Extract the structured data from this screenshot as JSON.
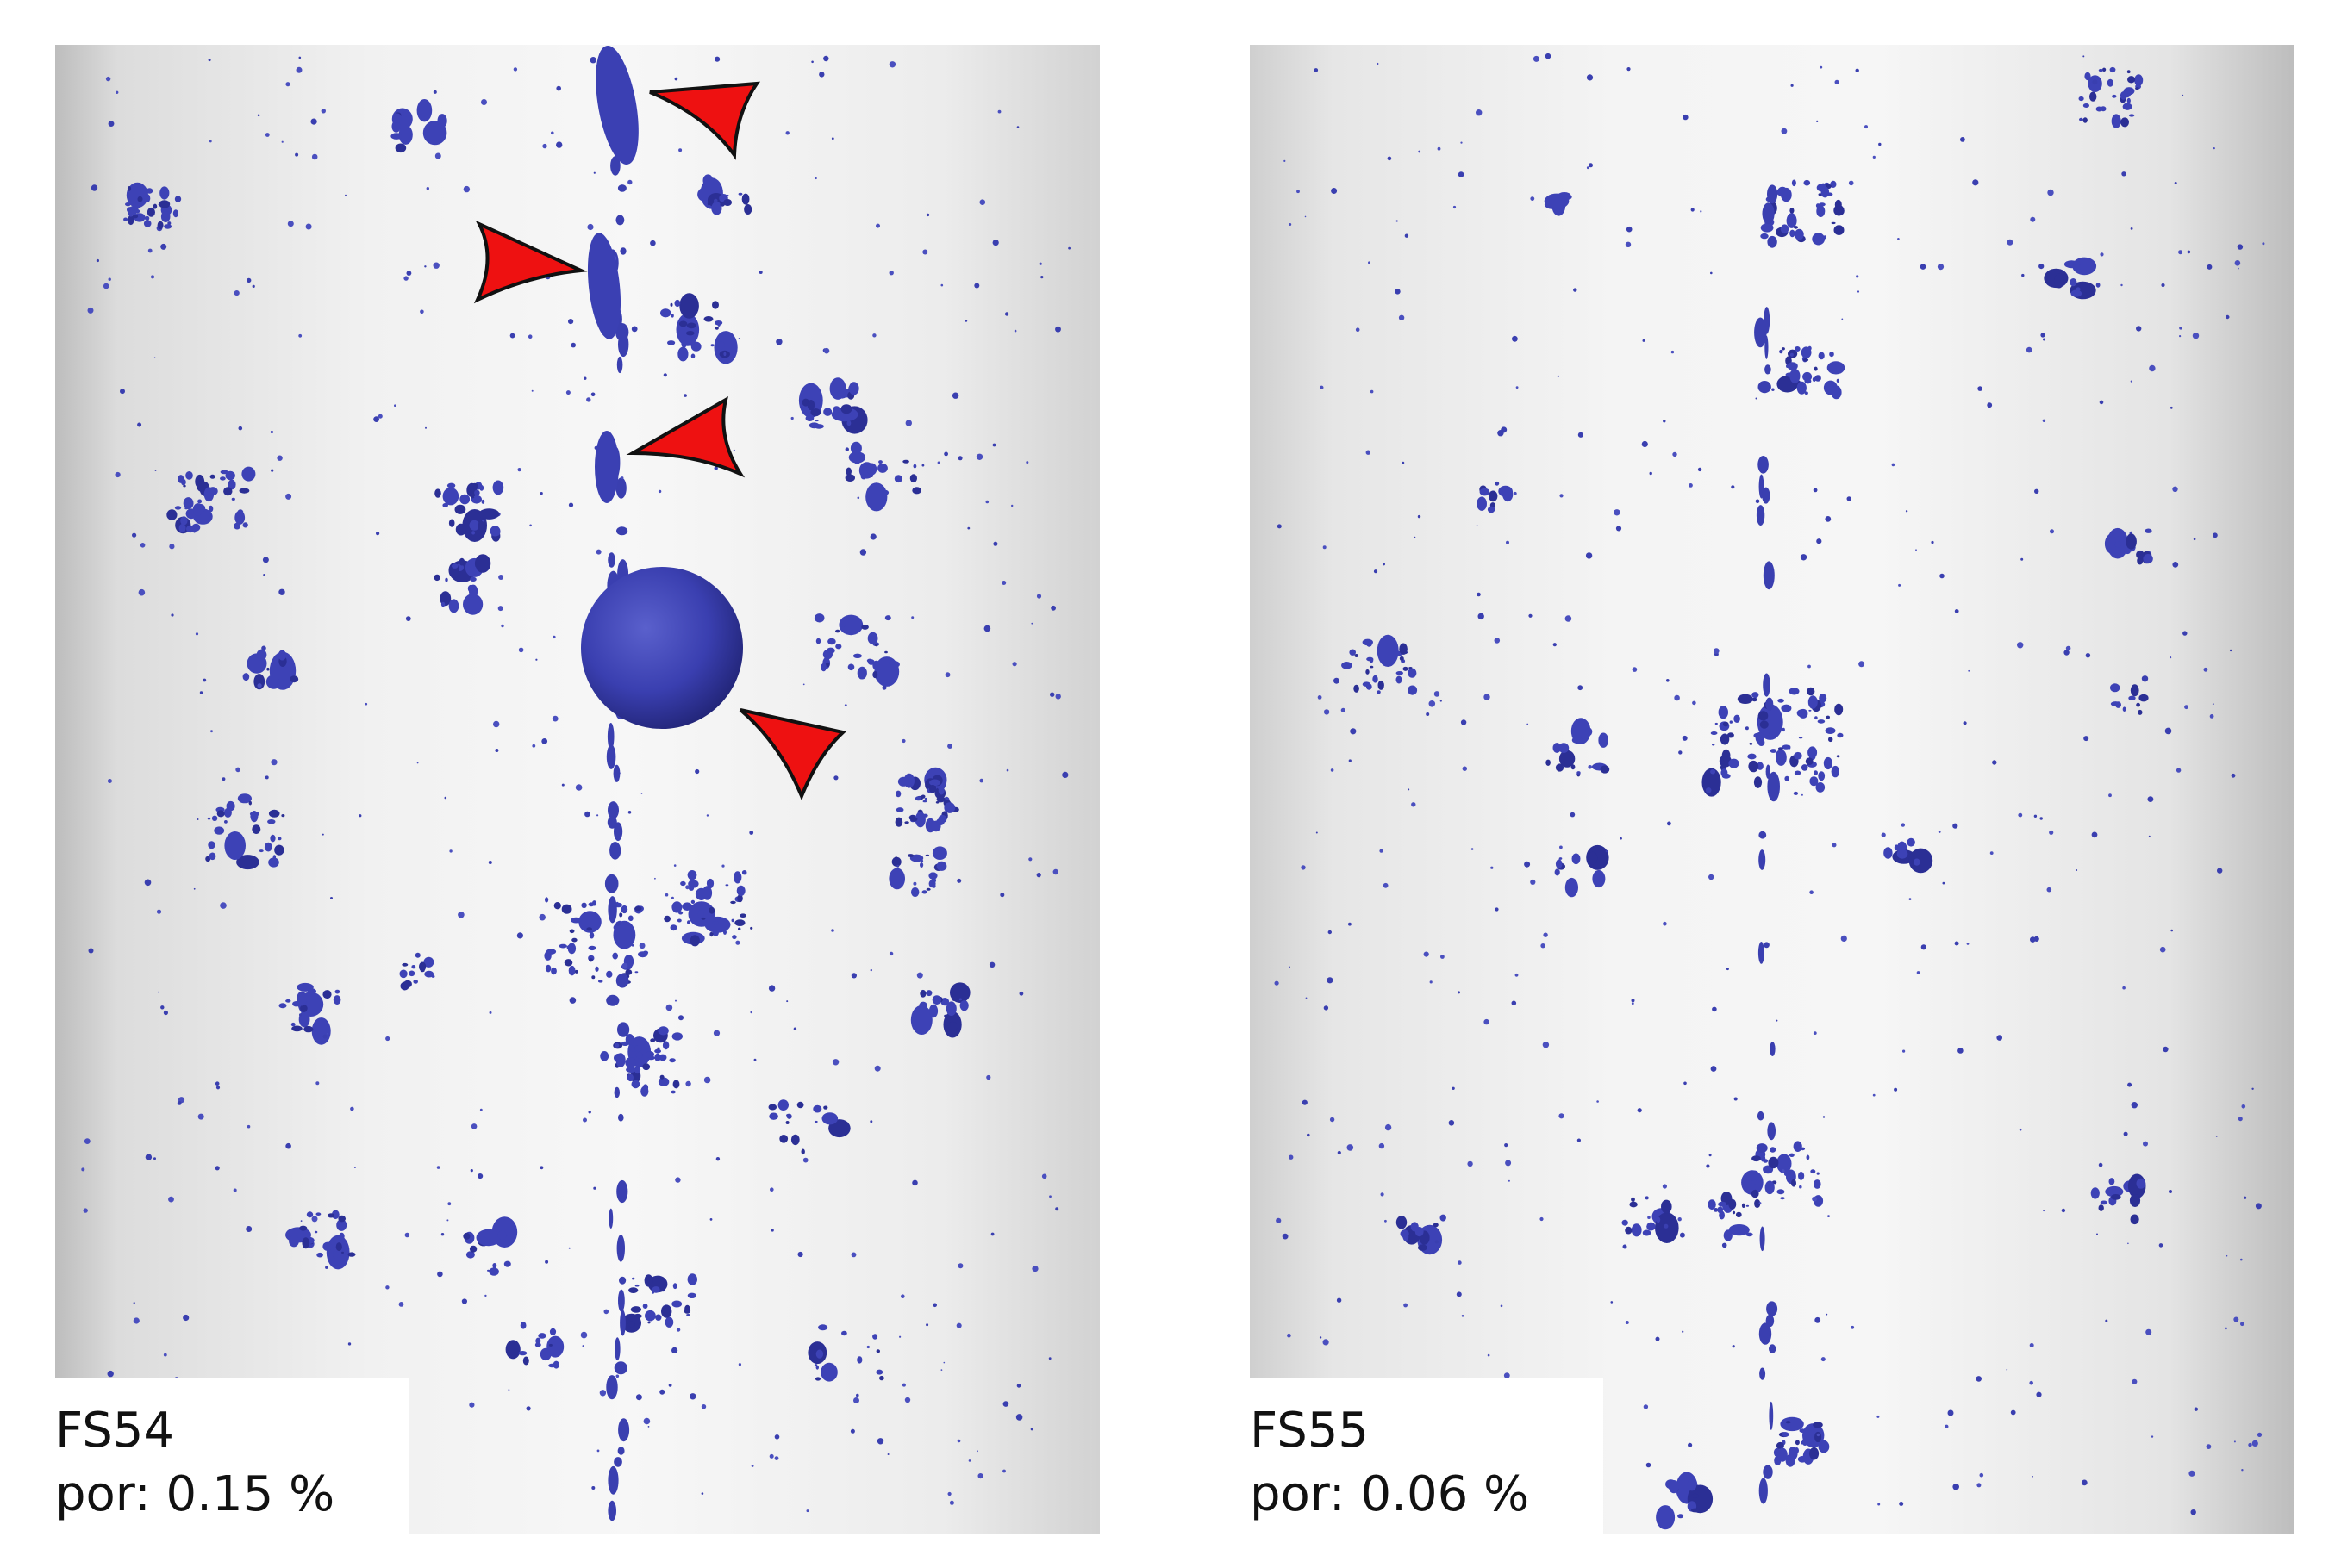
{
  "panels": [
    {
      "id": "left",
      "sample": "FS54",
      "porosity": "por: 0.15 %"
    },
    {
      "id": "right",
      "sample": "FS55",
      "porosity": "por: 0.06 %"
    }
  ],
  "colors": {
    "pore": "#3a3fb0",
    "pore_dark": "#272a8a",
    "arrow_fill": "#ee1111",
    "arrow_stroke": "#111111",
    "cylinder_light": "#f6f6f6",
    "cylinder_edge": "#b9b9b9"
  },
  "annotations": {
    "left_panel_arrow_count": 4,
    "arrow_icon": "red-arrowhead-icon"
  }
}
